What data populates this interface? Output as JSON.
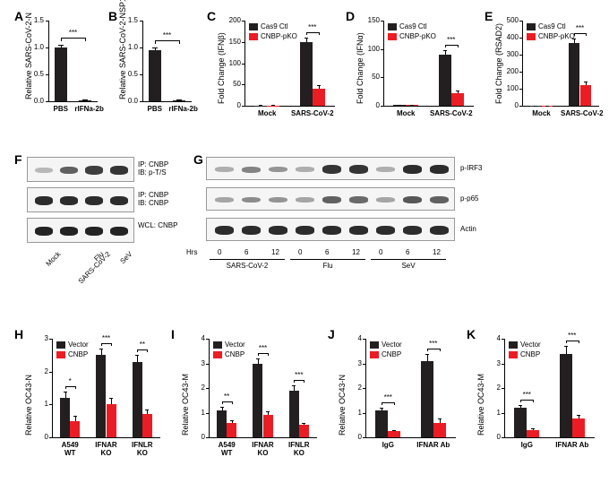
{
  "panelLabels": {
    "A": "A",
    "B": "B",
    "C": "C",
    "D": "D",
    "E": "E",
    "F": "F",
    "G": "G",
    "H": "H",
    "I": "I",
    "J": "J",
    "K": "K"
  },
  "colors": {
    "black": "#231f20",
    "red": "#ec1c24",
    "bg": "#ffffff",
    "blotBand": "#1a1a1a",
    "blotBg": "#f0f0ee"
  },
  "A": {
    "ylabel": "Relative SARS-CoV-2-N",
    "cats": [
      "PBS",
      "rIFNa-2b"
    ],
    "vals": [
      1.0,
      0.02
    ],
    "err": [
      0.05,
      0.01
    ],
    "ymax": 1.5,
    "yticks": [
      0,
      0.5,
      1.0,
      1.5
    ],
    "sig": "***",
    "color": "#231f20"
  },
  "B": {
    "ylabel": "Relative SARS-CoV-2-NSP14",
    "cats": [
      "PBS",
      "rIFNa-2b"
    ],
    "vals": [
      0.95,
      0.02
    ],
    "err": [
      0.05,
      0.01
    ],
    "ymax": 1.5,
    "yticks": [
      0,
      0.5,
      1.0,
      1.5
    ],
    "sig": "***",
    "color": "#231f20"
  },
  "C": {
    "ylabel": "Fold Change (IFNβ)",
    "groups": [
      "Mock",
      "SARS-CoV-2"
    ],
    "series": [
      "Cas9 Ctl",
      "CNBP-pKO"
    ],
    "vals": [
      [
        1,
        1
      ],
      [
        150,
        40
      ]
    ],
    "err": [
      [
        0.5,
        0.5
      ],
      [
        10,
        8
      ]
    ],
    "ymax": 200,
    "yticks": [
      0,
      50,
      100,
      150,
      200
    ],
    "sig": "***",
    "colors": [
      "#231f20",
      "#ec1c24"
    ]
  },
  "D": {
    "ylabel": "Fold Change (IFNα)",
    "groups": [
      "Mock",
      "SARS-CoV-2"
    ],
    "series": [
      "Cas9 Ctl",
      "CNBP-pKO"
    ],
    "vals": [
      [
        1,
        1
      ],
      [
        90,
        22
      ]
    ],
    "err": [
      [
        0.5,
        0.5
      ],
      [
        8,
        5
      ]
    ],
    "ymax": 150,
    "yticks": [
      0,
      50,
      100,
      150
    ],
    "sig": "***",
    "colors": [
      "#231f20",
      "#ec1c24"
    ]
  },
  "E": {
    "ylabel": "Fold Change (RSAD2)",
    "groups": [
      "Mock",
      "SARS-CoV-2"
    ],
    "series": [
      "Cas9 Ctl",
      "CNBP-pKO"
    ],
    "vals": [
      [
        1,
        1
      ],
      [
        370,
        120
      ]
    ],
    "err": [
      [
        0.5,
        0.5
      ],
      [
        25,
        20
      ]
    ],
    "ymax": 500,
    "yticks": [
      0,
      100,
      200,
      300,
      400,
      500
    ],
    "sig": "***",
    "colors": [
      "#231f20",
      "#ec1c24"
    ]
  },
  "F": {
    "rows": [
      {
        "label": "IP: CNBP\nIB: p-T/S",
        "intens": [
          0.1,
          0.6,
          0.8,
          0.85
        ]
      },
      {
        "label": "IP: CNBP\nIB: CNBP",
        "intens": [
          0.9,
          0.9,
          0.9,
          0.9
        ]
      },
      {
        "label": "WCL: CNBP",
        "intens": [
          0.95,
          0.95,
          0.95,
          0.95
        ]
      }
    ],
    "lanes": [
      "Mock",
      "SARS-CoV-2",
      "Flu",
      "SeV"
    ]
  },
  "G": {
    "rows": [
      {
        "label": "p-IRF3",
        "intens": [
          0.15,
          0.4,
          0.3,
          0.15,
          0.85,
          0.85,
          0.15,
          0.9,
          0.9
        ]
      },
      {
        "label": "p-p65",
        "intens": [
          0.2,
          0.35,
          0.3,
          0.2,
          0.6,
          0.55,
          0.2,
          0.65,
          0.6
        ]
      },
      {
        "label": "Actin",
        "intens": [
          0.9,
          0.9,
          0.9,
          0.9,
          0.9,
          0.9,
          0.9,
          0.9,
          0.9
        ]
      }
    ],
    "hrs": [
      "0",
      "6",
      "12",
      "0",
      "6",
      "12",
      "0",
      "6",
      "12"
    ],
    "hrsLabel": "Hrs",
    "conds": [
      "SARS-CoV-2",
      "Flu",
      "SeV"
    ]
  },
  "H": {
    "ylabel": "Relative OC43-N",
    "groups": [
      "A549\nWT",
      "IFNAR\nKO",
      "IFNLR\nKO"
    ],
    "series": [
      "Vector",
      "CNBP"
    ],
    "vals": [
      [
        1.2,
        0.5
      ],
      [
        2.5,
        1.0
      ],
      [
        2.3,
        0.7
      ]
    ],
    "err": [
      [
        0.2,
        0.15
      ],
      [
        0.2,
        0.2
      ],
      [
        0.2,
        0.15
      ]
    ],
    "ymax": 3,
    "yticks": [
      0,
      1,
      2,
      3
    ],
    "sigs": [
      "*",
      "***",
      "**"
    ],
    "colors": [
      "#231f20",
      "#ec1c24"
    ]
  },
  "I": {
    "ylabel": "Relative OC43-M",
    "groups": [
      "A549\nWT",
      "IFNAR\nKO",
      "IFNLR\nKO"
    ],
    "series": [
      "Vector",
      "CNBP"
    ],
    "vals": [
      [
        1.1,
        0.6
      ],
      [
        3.0,
        0.9
      ],
      [
        1.9,
        0.5
      ]
    ],
    "err": [
      [
        0.15,
        0.1
      ],
      [
        0.2,
        0.15
      ],
      [
        0.2,
        0.1
      ]
    ],
    "ymax": 4,
    "yticks": [
      0,
      1,
      2,
      3,
      4
    ],
    "sigs": [
      "**",
      "***",
      "***"
    ],
    "colors": [
      "#231f20",
      "#ec1c24"
    ]
  },
  "J": {
    "ylabel": "Relative OC43-N",
    "groups": [
      "IgG",
      "IFNAR Ab"
    ],
    "series": [
      "Vector",
      "CNBP"
    ],
    "vals": [
      [
        1.1,
        0.25
      ],
      [
        3.1,
        0.6
      ]
    ],
    "err": [
      [
        0.1,
        0.05
      ],
      [
        0.3,
        0.15
      ]
    ],
    "ymax": 4,
    "yticks": [
      0,
      1,
      2,
      3,
      4
    ],
    "sigs": [
      "***",
      "***"
    ],
    "colors": [
      "#231f20",
      "#ec1c24"
    ]
  },
  "K": {
    "ylabel": "Relative OC43-M",
    "groups": [
      "IgG",
      "IFNAR Ab"
    ],
    "series": [
      "Vector",
      "CNBP"
    ],
    "vals": [
      [
        1.2,
        0.3
      ],
      [
        3.4,
        0.75
      ]
    ],
    "err": [
      [
        0.1,
        0.05
      ],
      [
        0.3,
        0.15
      ]
    ],
    "ymax": 4,
    "yticks": [
      0,
      1,
      2,
      3,
      4
    ],
    "sigs": [
      "***",
      "***"
    ],
    "colors": [
      "#231f20",
      "#ec1c24"
    ]
  }
}
